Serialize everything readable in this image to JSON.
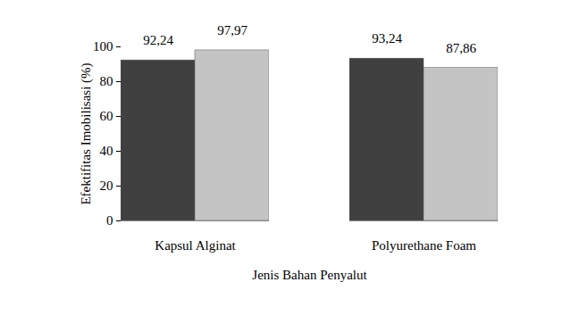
{
  "chart_data": {
    "type": "bar",
    "categories": [
      "Kapsul Alginat",
      "Polyurethane Foam"
    ],
    "series": [
      {
        "color": "#404040",
        "values": [
          92.24,
          93.24
        ],
        "value_labels": [
          "92,24",
          "93,24"
        ]
      },
      {
        "color": "#c4c4c4",
        "values": [
          97.97,
          87.86
        ],
        "value_labels": [
          "97,97",
          "87,86"
        ]
      }
    ],
    "x_label": "Jenis Bahan Penyalut",
    "y_label": "Efektifitas Imobilisasi (%)",
    "ylim": [
      0,
      100
    ],
    "yticks": [
      0,
      20,
      40,
      60,
      80,
      100
    ],
    "grid": false,
    "data_labels": true
  }
}
